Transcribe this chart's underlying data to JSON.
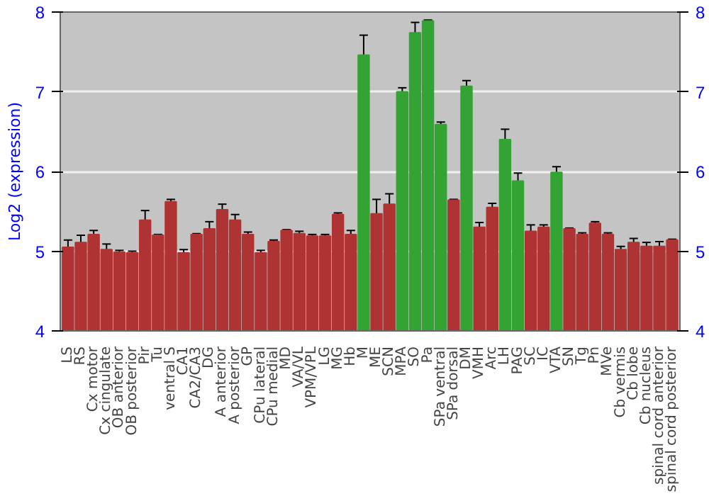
{
  "chart_data": {
    "type": "bar",
    "ylabel": "Log2 (expression)",
    "categories": [
      "LS",
      "RS",
      "Cx motor",
      "Cx cingulate",
      "OB anterior",
      "OB posterior",
      "Pir",
      "Tu",
      "ventral S",
      "CA1",
      "CA2/CA3",
      "DG",
      "A anterior",
      "A posterior",
      "GP",
      "CPu lateral",
      "CPu medial",
      "MD",
      "VA/VL",
      "VPM/VPL",
      "LG",
      "MG",
      "Hb",
      "M",
      "ME",
      "SCN",
      "MPA",
      "SO",
      "Pa",
      "SPa ventral",
      "SPa dorsal",
      "DM",
      "VMH",
      "Arc",
      "LH",
      "PAG",
      "SC",
      "IC",
      "VTA",
      "SN",
      "Tg",
      "Pn",
      "MVe",
      "Cb vermis",
      "Cb lobe",
      "Cb nucleus",
      "spinal cord anterior",
      "spinal cord posterior"
    ],
    "values": [
      5.05,
      5.11,
      5.21,
      5.02,
      4.99,
      4.98,
      5.39,
      5.2,
      5.62,
      4.98,
      5.21,
      5.28,
      5.52,
      5.39,
      5.21,
      4.98,
      5.12,
      5.26,
      5.22,
      5.19,
      5.19,
      5.46,
      5.21,
      7.46,
      5.47,
      5.59,
      7.0,
      7.74,
      7.89,
      6.59,
      5.64,
      7.07,
      5.3,
      5.55,
      6.4,
      5.88,
      5.25,
      5.3,
      5.99,
      5.28,
      5.21,
      5.35,
      5.21,
      5.02,
      5.11,
      5.06,
      5.06,
      5.14
    ],
    "errors": [
      0.09,
      0.09,
      0.05,
      0.07,
      0.02,
      0.02,
      0.12,
      0.01,
      0.03,
      0.04,
      0.01,
      0.09,
      0.07,
      0.07,
      0.03,
      0.03,
      0.02,
      0.01,
      0.03,
      0.02,
      0.02,
      0.02,
      0.05,
      0.25,
      0.18,
      0.13,
      0.05,
      0.13,
      0.01,
      0.03,
      0.01,
      0.07,
      0.06,
      0.05,
      0.13,
      0.1,
      0.08,
      0.03,
      0.07,
      0.01,
      0.02,
      0.02,
      0.02,
      0.04,
      0.05,
      0.05,
      0.06,
      0.01
    ],
    "colors": [
      "#b03333",
      "#b03333",
      "#b03333",
      "#b03333",
      "#b03333",
      "#b03333",
      "#b03333",
      "#b03333",
      "#b03333",
      "#b03333",
      "#b03333",
      "#b03333",
      "#b03333",
      "#b03333",
      "#b03333",
      "#b03333",
      "#b03333",
      "#b03333",
      "#b03333",
      "#b03333",
      "#b03333",
      "#b03333",
      "#b03333",
      "#33a333",
      "#b03333",
      "#b03333",
      "#33a333",
      "#33a333",
      "#33a333",
      "#33a333",
      "#b03333",
      "#33a333",
      "#b03333",
      "#b03333",
      "#33a333",
      "#33a333",
      "#b03333",
      "#b03333",
      "#33a333",
      "#b03333",
      "#b03333",
      "#b03333",
      "#b03333",
      "#b03333",
      "#b03333",
      "#b03333",
      "#b03333",
      "#b03333"
    ],
    "ylim": [
      4,
      8
    ],
    "yticks": [
      4,
      5,
      6,
      7,
      8
    ],
    "y2lim": [
      4,
      8
    ],
    "y2ticks": [
      4,
      5,
      6,
      7,
      8
    ],
    "grid": "y"
  }
}
